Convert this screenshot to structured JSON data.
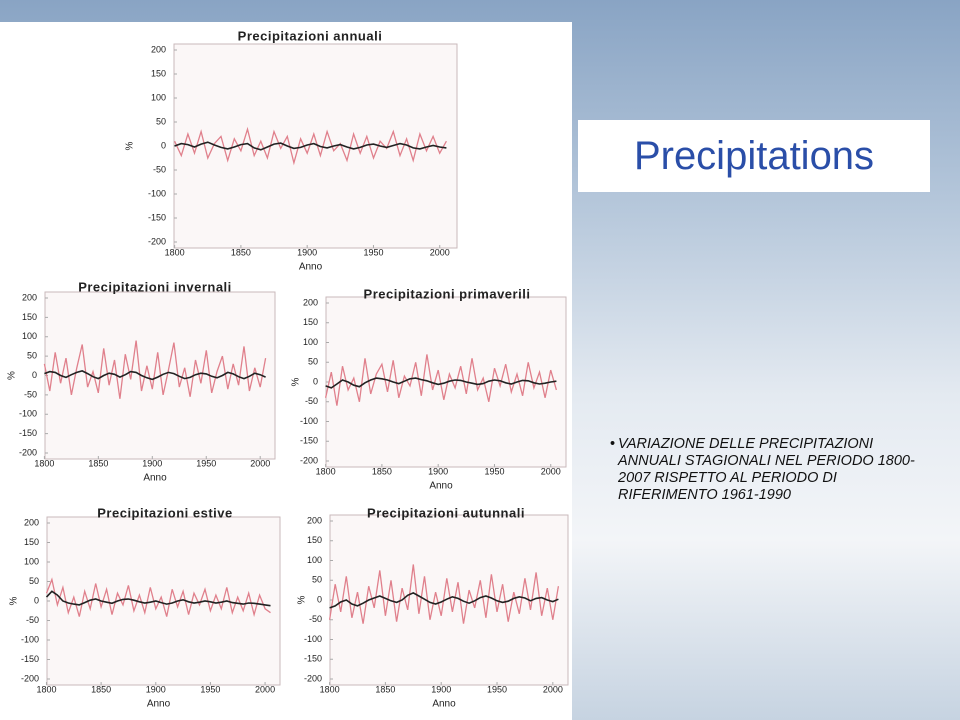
{
  "title": "Precipitations",
  "bullet": "VARIAZIONE DELLE PRECIPITAZIONI ANNUALI STAGIONALI NEL PERIODO 1800-2007 RISPETTO AL PERIODO DI RIFERIMENTO 1961-1990",
  "chart_data": [
    {
      "type": "line",
      "title": "Precipitazioni annuali",
      "xlabel": "Anno",
      "ylabel": "%",
      "x": [
        1800,
        1805,
        1810,
        1815,
        1820,
        1825,
        1830,
        1835,
        1840,
        1845,
        1850,
        1855,
        1860,
        1865,
        1870,
        1875,
        1880,
        1885,
        1890,
        1895,
        1900,
        1905,
        1910,
        1915,
        1920,
        1925,
        1930,
        1935,
        1940,
        1945,
        1950,
        1955,
        1960,
        1965,
        1970,
        1975,
        1980,
        1985,
        1990,
        1995,
        2000,
        2005
      ],
      "series": [
        {
          "color": "#e0808c",
          "values": [
            10,
            -20,
            25,
            -15,
            30,
            -25,
            5,
            20,
            -30,
            15,
            -10,
            35,
            -20,
            10,
            -25,
            30,
            -5,
            20,
            -35,
            15,
            -15,
            25,
            -20,
            30,
            -10,
            5,
            -30,
            25,
            -15,
            20,
            -25,
            10,
            -5,
            30,
            -20,
            15,
            -30,
            25,
            -10,
            20,
            -15,
            10
          ]
        },
        {
          "color": "#222222",
          "values": [
            0,
            5,
            3,
            -2,
            4,
            8,
            2,
            -3,
            -6,
            -2,
            3,
            5,
            -4,
            -8,
            -2,
            4,
            6,
            0,
            -5,
            -3,
            2,
            5,
            -1,
            -4,
            0,
            3,
            -2,
            -6,
            -3,
            2,
            4,
            0,
            -3,
            1,
            5,
            2,
            -4,
            -6,
            -2,
            1,
            -2,
            -4
          ]
        }
      ],
      "xlim": [
        1795,
        2010
      ],
      "xticks": [
        1800,
        1850,
        1900,
        1950,
        2000
      ],
      "ylim": [
        -200,
        200
      ],
      "yticks": [
        -200,
        -150,
        -100,
        -50,
        0,
        50,
        100,
        150,
        200
      ]
    },
    {
      "type": "line",
      "title": "Precipitazioni invernali",
      "xlabel": "Anno",
      "ylabel": "%",
      "x": [
        1800,
        1805,
        1810,
        1815,
        1820,
        1825,
        1830,
        1835,
        1840,
        1845,
        1850,
        1855,
        1860,
        1865,
        1870,
        1875,
        1880,
        1885,
        1890,
        1895,
        1900,
        1905,
        1910,
        1915,
        1920,
        1925,
        1930,
        1935,
        1940,
        1945,
        1950,
        1955,
        1960,
        1965,
        1970,
        1975,
        1980,
        1985,
        1990,
        1995,
        2000,
        2005
      ],
      "series": [
        {
          "color": "#e0808c",
          "values": [
            30,
            -40,
            60,
            -20,
            45,
            -50,
            20,
            80,
            -30,
            10,
            -45,
            70,
            -25,
            40,
            -60,
            55,
            -10,
            90,
            -40,
            25,
            -35,
            60,
            -50,
            15,
            85,
            -30,
            20,
            -55,
            40,
            -20,
            65,
            -45,
            10,
            50,
            -35,
            30,
            -25,
            75,
            -40,
            20,
            -30,
            45
          ]
        },
        {
          "color": "#222222",
          "values": [
            5,
            10,
            8,
            0,
            -5,
            2,
            8,
            12,
            5,
            -3,
            -8,
            0,
            6,
            3,
            -4,
            2,
            10,
            8,
            0,
            -6,
            -10,
            -4,
            3,
            8,
            5,
            -2,
            -8,
            -5,
            2,
            6,
            4,
            -2,
            -6,
            0,
            8,
            4,
            -3,
            -8,
            -2,
            6,
            2,
            -4
          ]
        }
      ],
      "xlim": [
        1795,
        2010
      ],
      "xticks": [
        1800,
        1850,
        1900,
        1950,
        2000
      ],
      "ylim": [
        -200,
        200
      ],
      "yticks": [
        -200,
        -150,
        -100,
        -50,
        0,
        50,
        100,
        150,
        200
      ]
    },
    {
      "type": "line",
      "title": "Precipitazioni primaverili",
      "xlabel": "Anno",
      "ylabel": "%",
      "x": [
        1800,
        1805,
        1810,
        1815,
        1820,
        1825,
        1830,
        1835,
        1840,
        1845,
        1850,
        1855,
        1860,
        1865,
        1870,
        1875,
        1880,
        1885,
        1890,
        1895,
        1900,
        1905,
        1910,
        1915,
        1920,
        1925,
        1930,
        1935,
        1940,
        1945,
        1950,
        1955,
        1960,
        1965,
        1970,
        1975,
        1980,
        1985,
        1990,
        1995,
        2000,
        2005
      ],
      "series": [
        {
          "color": "#e0808c",
          "values": [
            -40,
            25,
            -60,
            40,
            -20,
            10,
            -50,
            60,
            -30,
            20,
            45,
            -25,
            55,
            -40,
            15,
            -10,
            50,
            -35,
            70,
            -20,
            30,
            -45,
            20,
            -15,
            40,
            -30,
            60,
            -20,
            10,
            -50,
            35,
            -10,
            45,
            -25,
            20,
            -35,
            50,
            -15,
            25,
            -40,
            30,
            -20
          ]
        },
        {
          "color": "#222222",
          "values": [
            -10,
            -15,
            -5,
            5,
            0,
            -8,
            -12,
            -2,
            5,
            10,
            8,
            5,
            0,
            -4,
            2,
            8,
            10,
            6,
            3,
            -2,
            -6,
            -3,
            2,
            5,
            4,
            0,
            -3,
            -6,
            -4,
            2,
            5,
            3,
            -2,
            -5,
            0,
            4,
            3,
            -2,
            -5,
            -3,
            0,
            2
          ]
        }
      ],
      "xlim": [
        1795,
        2010
      ],
      "xticks": [
        1800,
        1850,
        1900,
        1950,
        2000
      ],
      "ylim": [
        -200,
        200
      ],
      "yticks": [
        -200,
        -150,
        -100,
        -50,
        0,
        50,
        100,
        150,
        200
      ]
    },
    {
      "type": "line",
      "title": "Precipitazioni estive",
      "xlabel": "Anno",
      "ylabel": "%",
      "x": [
        1800,
        1805,
        1810,
        1815,
        1820,
        1825,
        1830,
        1835,
        1840,
        1845,
        1850,
        1855,
        1860,
        1865,
        1870,
        1875,
        1880,
        1885,
        1890,
        1895,
        1900,
        1905,
        1910,
        1915,
        1920,
        1925,
        1930,
        1935,
        1940,
        1945,
        1950,
        1955,
        1960,
        1965,
        1970,
        1975,
        1980,
        1985,
        1990,
        1995,
        2000,
        2005
      ],
      "series": [
        {
          "color": "#e0808c",
          "values": [
            20,
            55,
            -10,
            35,
            -30,
            10,
            -40,
            25,
            -20,
            45,
            -15,
            30,
            -35,
            20,
            -10,
            40,
            -25,
            15,
            -30,
            35,
            -20,
            10,
            -40,
            30,
            -15,
            25,
            -35,
            20,
            -10,
            30,
            -25,
            15,
            -20,
            35,
            -30,
            10,
            -25,
            20,
            -35,
            15,
            -20,
            -30
          ]
        },
        {
          "color": "#222222",
          "values": [
            10,
            25,
            15,
            0,
            -5,
            -8,
            -10,
            -4,
            2,
            5,
            0,
            -3,
            -6,
            0,
            4,
            5,
            2,
            -2,
            -5,
            -3,
            0,
            -4,
            -8,
            -5,
            0,
            3,
            -2,
            -5,
            -3,
            0,
            -2,
            -5,
            -3,
            0,
            -4,
            -6,
            -8,
            -5,
            -6,
            -8,
            -10,
            -12
          ]
        }
      ],
      "xlim": [
        1795,
        2010
      ],
      "xticks": [
        1800,
        1850,
        1900,
        1950,
        2000
      ],
      "ylim": [
        -200,
        200
      ],
      "yticks": [
        -200,
        -150,
        -100,
        -50,
        0,
        50,
        100,
        150,
        200
      ]
    },
    {
      "type": "line",
      "title": "Precipitazioni autunnali",
      "xlabel": "Anno",
      "ylabel": "%",
      "x": [
        1800,
        1805,
        1810,
        1815,
        1820,
        1825,
        1830,
        1835,
        1840,
        1845,
        1850,
        1855,
        1860,
        1865,
        1870,
        1875,
        1880,
        1885,
        1890,
        1895,
        1900,
        1905,
        1910,
        1915,
        1920,
        1925,
        1930,
        1935,
        1940,
        1945,
        1950,
        1955,
        1960,
        1965,
        1970,
        1975,
        1980,
        1985,
        1990,
        1995,
        2000,
        2005
      ],
      "series": [
        {
          "color": "#e0808c",
          "values": [
            -50,
            40,
            -30,
            60,
            -45,
            20,
            -60,
            35,
            -20,
            75,
            -40,
            50,
            -55,
            30,
            -25,
            90,
            -35,
            60,
            -50,
            20,
            -40,
            55,
            -30,
            45,
            -60,
            25,
            -20,
            50,
            -45,
            65,
            -30,
            40,
            -55,
            20,
            -35,
            55,
            -25,
            70,
            -40,
            30,
            -50,
            35
          ]
        },
        {
          "color": "#222222",
          "values": [
            -20,
            -15,
            -5,
            0,
            -10,
            -15,
            -8,
            0,
            5,
            10,
            4,
            -2,
            -6,
            0,
            12,
            18,
            10,
            2,
            -6,
            -10,
            -5,
            2,
            8,
            4,
            -3,
            -8,
            -2,
            6,
            10,
            5,
            -2,
            -6,
            -3,
            4,
            8,
            5,
            -2,
            4,
            6,
            0,
            -4,
            2
          ]
        }
      ],
      "xlim": [
        1795,
        2010
      ],
      "xticks": [
        1800,
        1850,
        1900,
        1950,
        2000
      ],
      "ylim": [
        -200,
        200
      ],
      "yticks": [
        -200,
        -150,
        -100,
        -50,
        0,
        50,
        100,
        150,
        200
      ]
    }
  ]
}
